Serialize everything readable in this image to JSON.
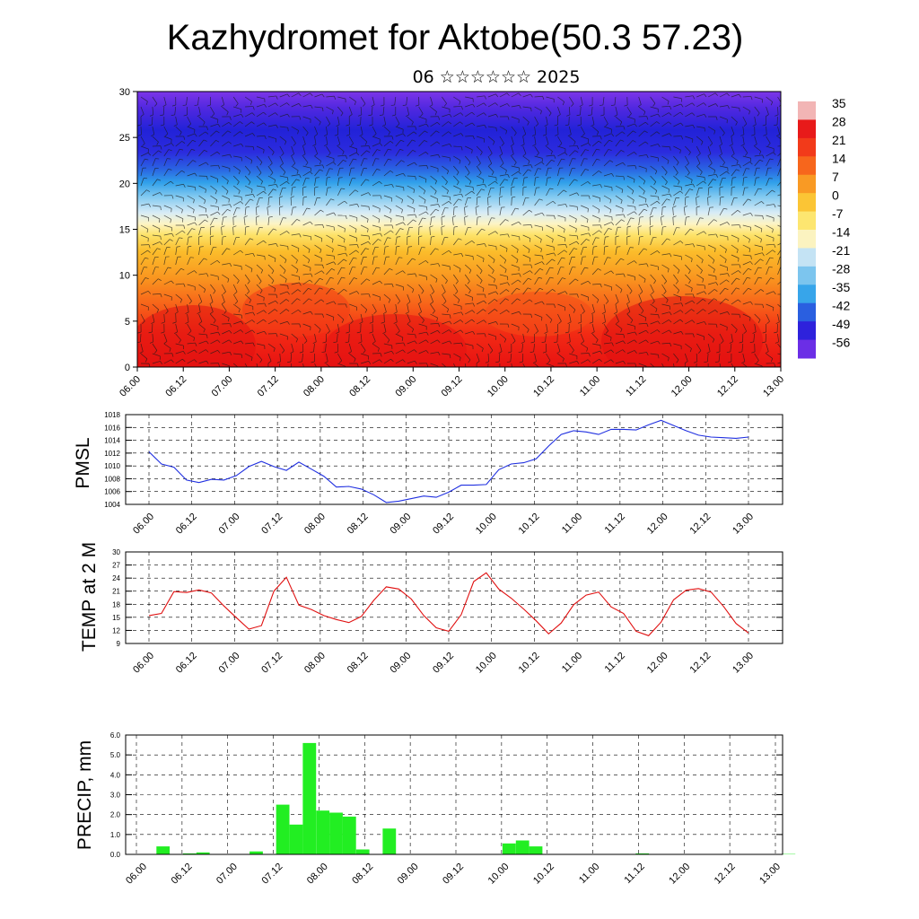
{
  "title": "Kazhydromet for Aktobe(50.3 57.23)",
  "subtitle": "06 ☆☆☆☆☆☆ 2025",
  "time_labels": [
    "06.00",
    "06.12",
    "07.00",
    "07.12",
    "08.00",
    "08.12",
    "09.00",
    "09.12",
    "10.00",
    "10.12",
    "11.00",
    "11.12",
    "12.00",
    "12.12",
    "13.00"
  ],
  "colors": {
    "pmsl_line": "#1f2fe0",
    "temp_line": "#e01010",
    "precip_bar": "#22ee22"
  },
  "chart_data": [
    {
      "type": "heatmap",
      "name": "cross-section",
      "ylim": [
        0,
        30
      ],
      "yticks": [
        0,
        5,
        10,
        15,
        20,
        25,
        30
      ],
      "colorbar_ticks": [
        "35",
        "28",
        "21",
        "14",
        "7",
        "0",
        "-7",
        "-14",
        "-21",
        "-28",
        "-35",
        "-42",
        "-49",
        "-56"
      ],
      "colorscale": [
        "#f2b5b5",
        "#e81a1a",
        "#f23a1a",
        "#f7661c",
        "#f99a24",
        "#fbc535",
        "#fde670",
        "#fbf3c0",
        "#c4e3f4",
        "#7cc5ee",
        "#37a5ea",
        "#2a5fe0",
        "#2e22dc",
        "#6b2ee6"
      ],
      "wind_barbs": true
    },
    {
      "type": "line",
      "name": "pmsl",
      "ylabel": "PMSL",
      "ylim": [
        1004,
        1018
      ],
      "yticks": [
        1004,
        1006,
        1008,
        1010,
        1012,
        1014,
        1016,
        1018
      ],
      "x_hours": [
        0,
        3,
        6,
        9,
        12,
        15,
        18,
        21,
        24,
        27,
        30,
        33,
        36,
        39,
        42,
        45,
        48,
        51,
        54,
        57,
        60,
        63,
        66,
        69,
        72,
        75,
        78,
        81,
        84,
        87,
        90,
        93,
        96,
        99,
        102,
        105,
        108,
        111,
        114,
        117,
        120,
        123,
        126,
        129,
        132,
        135,
        138,
        141,
        144
      ],
      "values": [
        1012.2,
        1010.3,
        1009.8,
        1007.8,
        1007.4,
        1007.9,
        1007.8,
        1008.5,
        1009.9,
        1010.7,
        1009.9,
        1009.3,
        1010.6,
        1009.5,
        1008.4,
        1006.7,
        1006.8,
        1006.4,
        1005.5,
        1004.3,
        1004.5,
        1004.9,
        1005.3,
        1005.1,
        1005.9,
        1007.0,
        1007.0,
        1007.1,
        1009.4,
        1010.3,
        1010.5,
        1011.1,
        1013.1,
        1014.9,
        1015.5,
        1015.3,
        1014.9,
        1015.7,
        1015.7,
        1015.6,
        1016.4,
        1017.1,
        1016.3,
        1015.5,
        1014.8,
        1014.5,
        1014.4,
        1014.3,
        1014.5
      ]
    },
    {
      "type": "line",
      "name": "temp2m",
      "ylabel": "TEMP at 2 M",
      "ylim": [
        9,
        30
      ],
      "yticks": [
        9,
        12,
        15,
        18,
        21,
        24,
        27,
        30
      ],
      "x_hours": [
        0,
        3,
        6,
        9,
        12,
        15,
        18,
        21,
        24,
        27,
        30,
        33,
        36,
        39,
        42,
        45,
        48,
        51,
        54,
        57,
        60,
        63,
        66,
        69,
        72,
        75,
        78,
        81,
        84,
        87,
        90,
        93,
        96,
        99,
        102,
        105,
        108,
        111,
        114,
        117,
        120,
        123,
        126,
        129,
        132,
        135,
        138,
        141,
        144
      ],
      "values": [
        15.4,
        15.9,
        20.9,
        20.7,
        21.3,
        20.6,
        17.6,
        14.9,
        12.3,
        13.1,
        21.0,
        24.2,
        17.8,
        16.8,
        15.4,
        14.5,
        13.8,
        15.2,
        18.9,
        22.0,
        21.5,
        19.2,
        15.4,
        12.6,
        11.8,
        15.6,
        23.2,
        25.2,
        21.5,
        19.4,
        16.9,
        14.2,
        11.2,
        13.7,
        17.9,
        20.1,
        20.8,
        17.4,
        15.9,
        11.8,
        10.8,
        13.9,
        19.0,
        21.2,
        21.6,
        20.8,
        17.5,
        13.6,
        11.4
      ]
    },
    {
      "type": "bar",
      "name": "precip",
      "ylabel": "PRECIP, mm",
      "ylim": [
        0,
        6
      ],
      "yticks": [
        "0.0",
        "1.0",
        "2.0",
        "3.0",
        "4.0",
        "5.0",
        "6.0"
      ],
      "x_hours": [
        0,
        3,
        6,
        9,
        12,
        15,
        18,
        21,
        24,
        27,
        30,
        33,
        36,
        39,
        42,
        45,
        48,
        51,
        54,
        57,
        60,
        63,
        66,
        69,
        72,
        75,
        78,
        81,
        84,
        87,
        90,
        93,
        96,
        99,
        102,
        105,
        108,
        111,
        114,
        117,
        120,
        123,
        126,
        129,
        132,
        135,
        138,
        141,
        144,
        147
      ],
      "values": [
        0,
        0,
        0.4,
        0,
        0.05,
        0.1,
        0,
        0,
        0,
        0.15,
        0,
        2.5,
        1.5,
        5.6,
        2.2,
        2.1,
        1.9,
        0.25,
        0,
        1.3,
        0,
        0,
        0,
        0,
        0,
        0,
        0,
        0,
        0.55,
        0.7,
        0.4,
        0,
        0,
        0,
        0,
        0,
        0,
        0,
        0.05,
        0,
        0,
        0,
        0,
        0,
        0,
        0,
        0,
        0,
        0,
        0.02
      ]
    }
  ]
}
